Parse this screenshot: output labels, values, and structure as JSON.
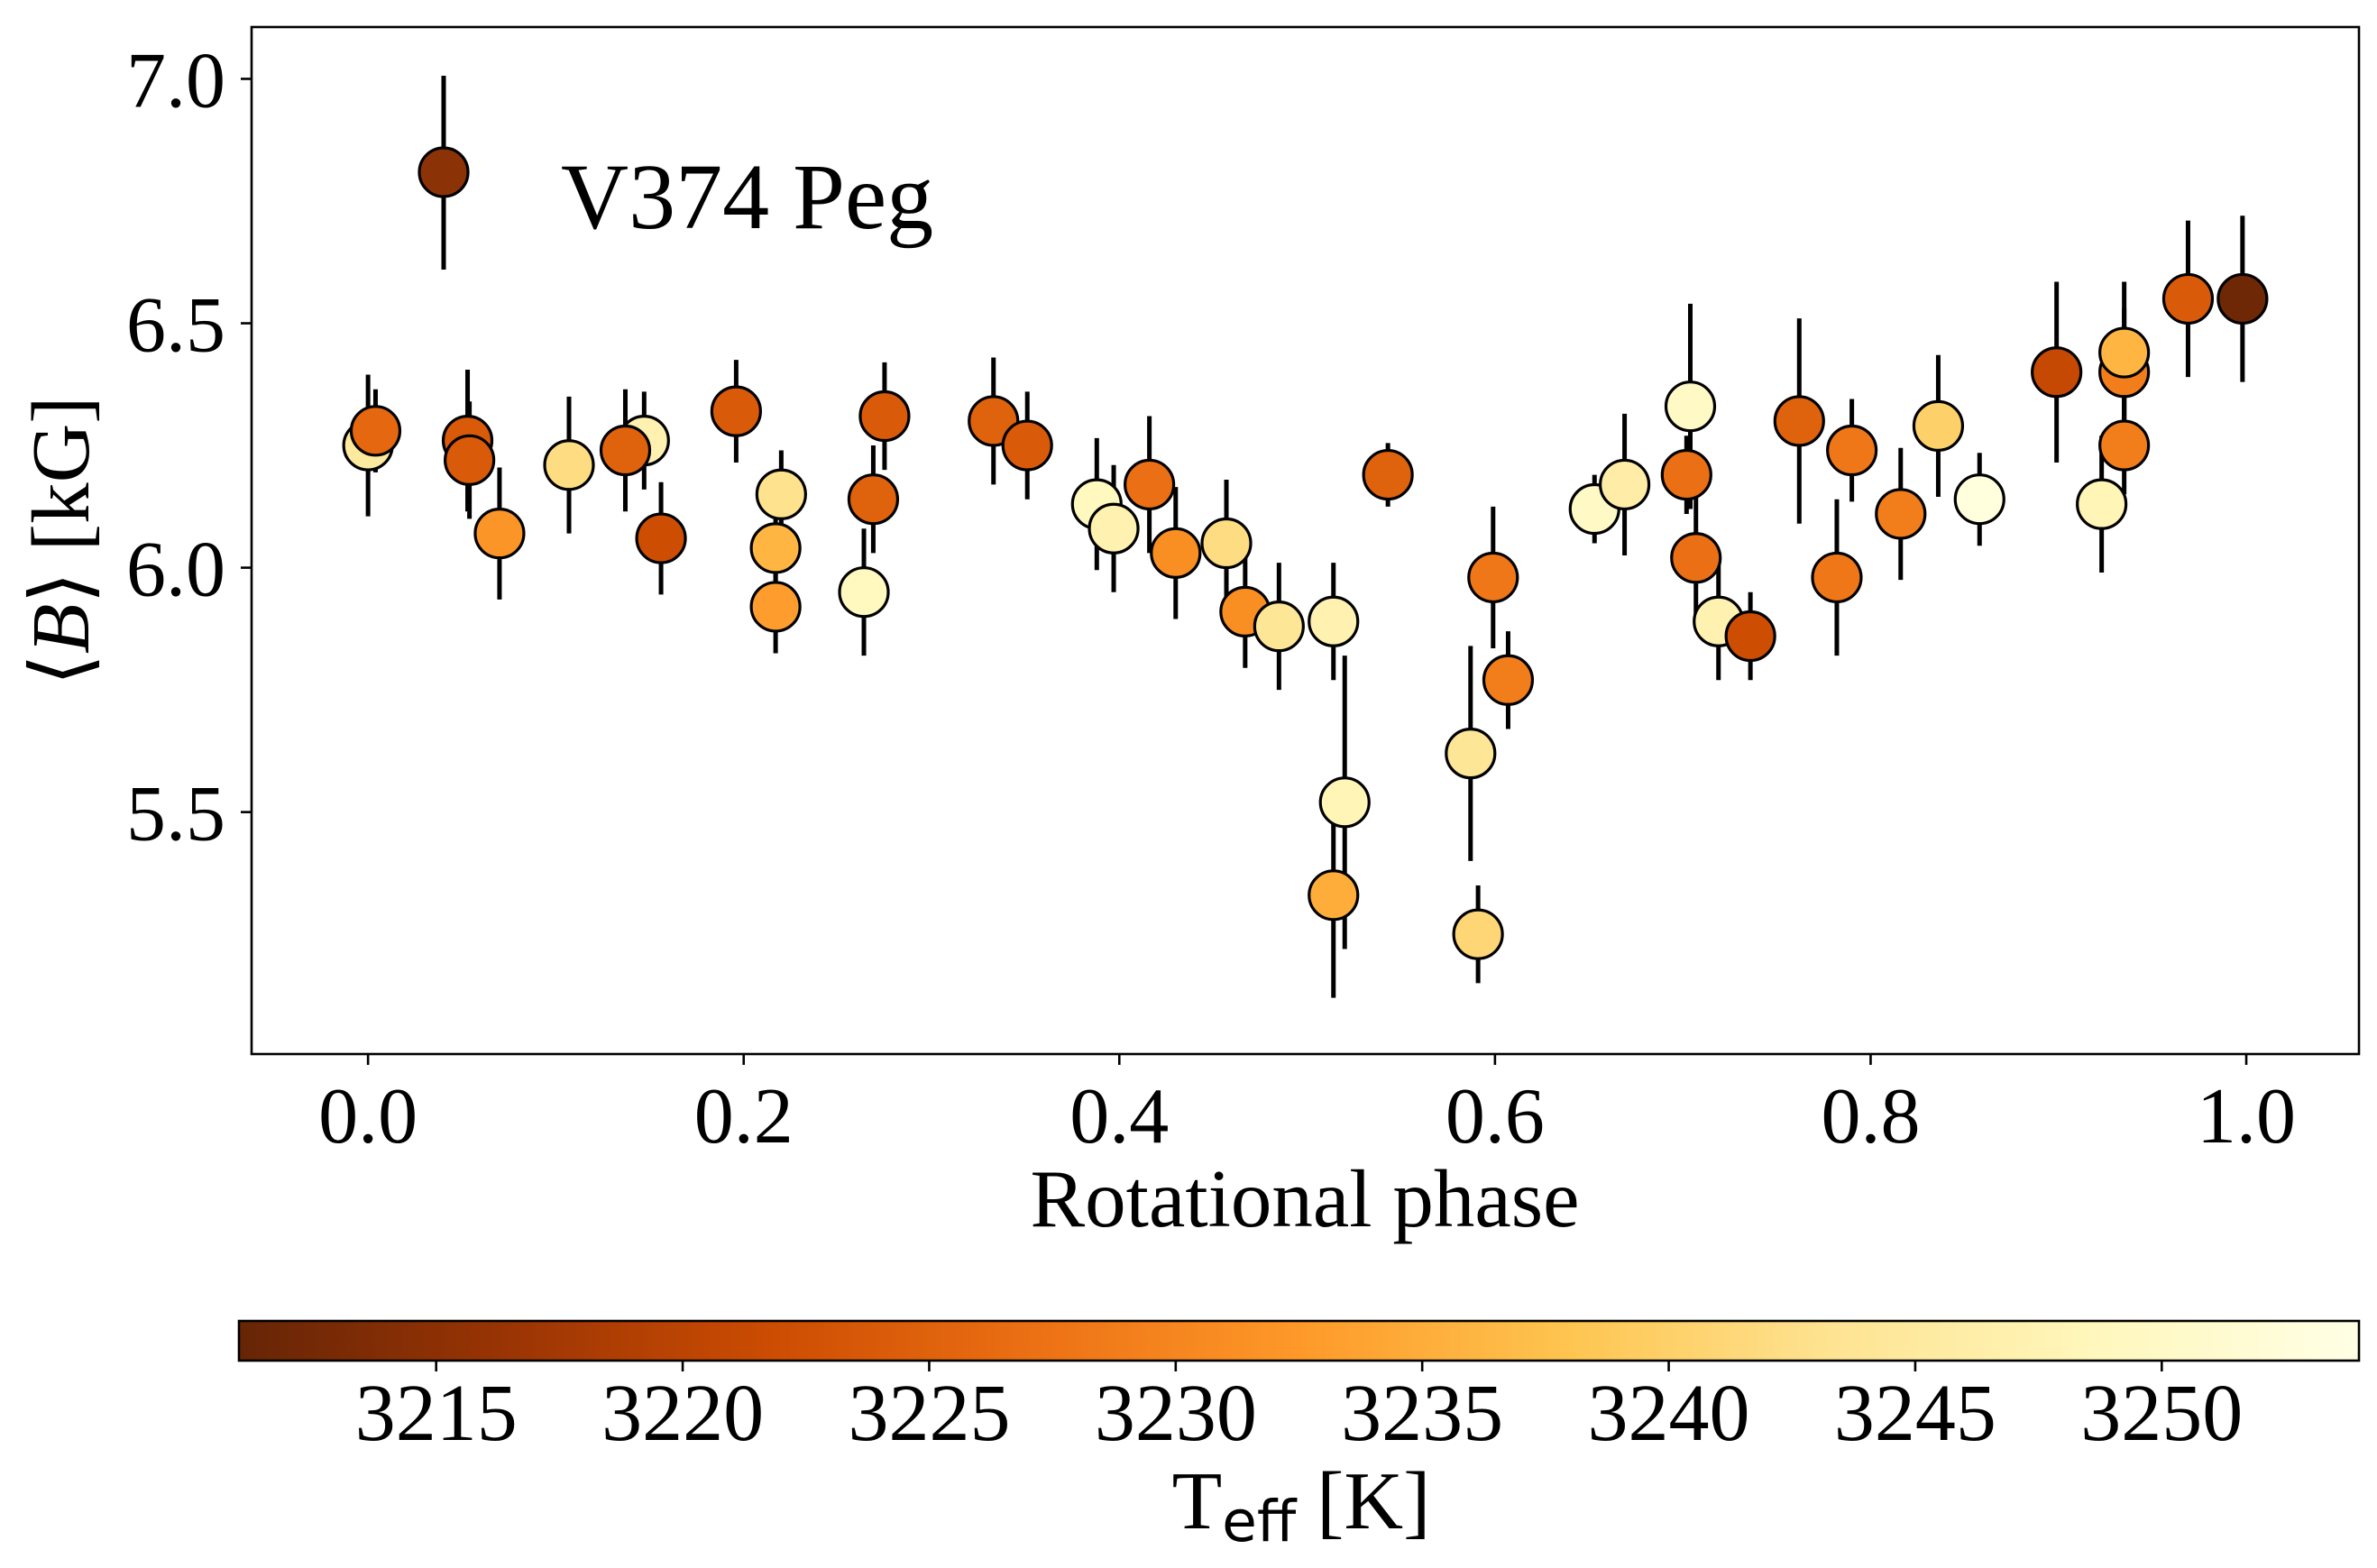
{
  "chart_data": {
    "type": "scatter",
    "xlabel": "Rotational phase",
    "ylabel": {
      "open": "⟨",
      "var": "B",
      "close": "⟩ [kG]"
    },
    "xlim": [
      -0.062,
      1.06
    ],
    "ylim": [
      5.005,
      7.106
    ],
    "x_ticks": [
      0.0,
      0.2,
      0.4,
      0.6,
      0.8,
      1.0
    ],
    "x_tick_labels": [
      "0.0",
      "0.2",
      "0.4",
      "0.6",
      "0.8",
      "1.0"
    ],
    "y_ticks": [
      5.5,
      6.0,
      6.5,
      7.0
    ],
    "y_tick_labels": [
      "5.5",
      "6.0",
      "6.5",
      "7.0"
    ],
    "grid": false,
    "error_bars": true,
    "legend": {
      "placement": "upper-left",
      "marker_color": "#8b3306"
    },
    "colorbar": {
      "placement": "bottom",
      "colormap_stops": [
        "#662506",
        "#993404",
        "#cc4c02",
        "#ec7014",
        "#fe9929",
        "#fec44f",
        "#fee391",
        "#fff7bc",
        "#ffffe5"
      ],
      "range": [
        3211,
        3254
      ],
      "ticks": [
        3215,
        3220,
        3225,
        3230,
        3235,
        3240,
        3245,
        3250
      ],
      "tick_labels": [
        "3215",
        "3220",
        "3225",
        "3230",
        "3235",
        "3240",
        "3245",
        "3250"
      ],
      "label": {
        "main": "T",
        "sub": "eff",
        "unit": " [K]"
      }
    },
    "series": [
      {
        "name": "V374 Peg",
        "x": [
          0.0,
          0.004,
          0.053,
          0.054,
          0.07,
          0.107,
          0.147,
          0.137,
          0.156,
          0.196,
          0.22,
          0.217,
          0.217,
          0.264,
          0.269,
          0.275,
          0.333,
          0.351,
          0.388,
          0.397,
          0.416,
          0.43,
          0.457,
          0.467,
          0.485,
          0.514,
          0.52,
          0.514,
          0.543,
          0.587,
          0.591,
          0.599,
          0.607,
          0.653,
          0.669,
          0.704,
          0.702,
          0.707,
          0.719,
          0.736,
          0.762,
          0.782,
          0.79,
          0.816,
          0.836,
          0.858,
          0.899,
          0.923,
          0.935,
          0.935,
          0.935,
          0.969,
          0.998
        ],
        "y": [
          6.25,
          6.28,
          6.26,
          6.22,
          6.07,
          6.21,
          6.26,
          6.24,
          6.06,
          6.32,
          6.15,
          6.04,
          5.92,
          5.95,
          6.14,
          6.31,
          6.3,
          6.25,
          6.13,
          6.08,
          6.17,
          6.03,
          6.05,
          5.91,
          5.88,
          5.89,
          5.52,
          5.33,
          6.19,
          5.62,
          5.25,
          5.98,
          5.77,
          6.12,
          6.17,
          6.33,
          6.19,
          6.02,
          5.89,
          5.86,
          6.3,
          5.98,
          6.24,
          6.11,
          6.29,
          6.14,
          6.4,
          6.13,
          6.25,
          6.4,
          6.44,
          6.55,
          6.55
        ],
        "yerr": [
          0.145,
          0.085,
          0.145,
          0.12,
          0.135,
          0.14,
          0.1,
          0.125,
          0.115,
          0.105,
          0.09,
          0.1,
          0.095,
          0.13,
          0.11,
          0.11,
          0.13,
          0.11,
          0.135,
          0.13,
          0.14,
          0.135,
          0.13,
          0.115,
          0.13,
          0.12,
          0.3,
          0.21,
          0.065,
          0.22,
          0.1,
          0.145,
          0.1,
          0.07,
          0.145,
          0.21,
          0.08,
          0.125,
          0.12,
          0.09,
          0.21,
          0.16,
          0.105,
          0.135,
          0.145,
          0.095,
          0.185,
          0.14,
          0.1,
          0.13,
          0.145,
          0.16,
          0.17
        ],
        "teff": [
          3245,
          3226,
          3224,
          3224,
          3232,
          3242,
          3247,
          3225,
          3222,
          3224,
          3243,
          3236,
          3233,
          3249,
          3225,
          3224,
          3225,
          3224,
          3249,
          3247,
          3227,
          3231,
          3242,
          3231,
          3244,
          3247,
          3248,
          3235,
          3225,
          3244,
          3241,
          3228,
          3229,
          3250,
          3246,
          3250,
          3227,
          3227,
          3247,
          3222,
          3225,
          3228,
          3228,
          3229,
          3240,
          3253,
          3221,
          3248,
          3229,
          3229,
          3236,
          3224,
          3212
        ]
      }
    ]
  }
}
